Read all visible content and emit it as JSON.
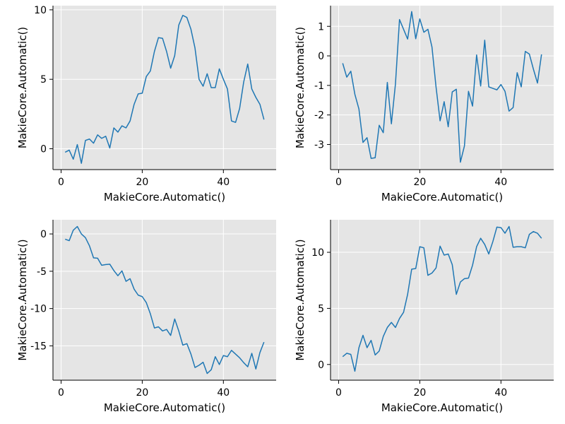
{
  "figure": {
    "background": "#ffffff",
    "panel_color": "#e5e5e5",
    "grid_color": "#ffffff",
    "line_color": "#1f77b4"
  },
  "chart_data": [
    {
      "type": "line",
      "xlabel": "MakieCore.Automatic()",
      "ylabel": "MakieCore.Automatic()",
      "xlim": [
        -2,
        53
      ],
      "ylim": [
        -1.5,
        10.3
      ],
      "xticks": [
        0,
        20,
        40
      ],
      "xtick_labels": [
        "0",
        "20",
        "40"
      ],
      "yticks": [
        0,
        5,
        10
      ],
      "ytick_labels": [
        "0",
        "5",
        "10"
      ],
      "grid": true,
      "x": [
        1,
        2,
        3,
        4,
        5,
        6,
        7,
        8,
        9,
        10,
        11,
        12,
        13,
        14,
        15,
        16,
        17,
        18,
        19,
        20,
        21,
        22,
        23,
        24,
        25,
        26,
        27,
        28,
        29,
        30,
        31,
        32,
        33,
        34,
        35,
        36,
        37,
        38,
        39,
        40,
        41,
        42,
        43,
        44,
        45,
        46,
        47,
        48,
        49,
        50
      ],
      "y": [
        -0.25,
        -0.1,
        -0.75,
        0.3,
        -1.05,
        0.6,
        0.7,
        0.4,
        1.0,
        0.75,
        0.9,
        0.05,
        1.5,
        1.2,
        1.65,
        1.5,
        2.0,
        3.2,
        3.95,
        4.0,
        5.2,
        5.6,
        7.0,
        8.0,
        7.95,
        7.0,
        5.8,
        6.7,
        8.9,
        9.6,
        9.45,
        8.6,
        7.25,
        5.0,
        4.5,
        5.4,
        4.4,
        4.4,
        5.75,
        5.0,
        4.3,
        2.0,
        1.9,
        2.9,
        4.8,
        6.1,
        4.3,
        3.7,
        3.2,
        2.1
      ]
    },
    {
      "type": "line",
      "xlabel": "MakieCore.Automatic()",
      "ylabel": "MakieCore.Automatic()",
      "xlim": [
        -2,
        53
      ],
      "ylim": [
        -3.85,
        1.7
      ],
      "xticks": [
        0,
        20,
        40
      ],
      "xtick_labels": [
        "0",
        "20",
        "40"
      ],
      "yticks": [
        1,
        0,
        -1,
        -2,
        -3
      ],
      "ytick_labels": [
        "1",
        "0",
        "-1",
        "-2",
        "-3"
      ],
      "grid": true,
      "x": [
        1,
        2,
        3,
        4,
        5,
        6,
        7,
        8,
        9,
        10,
        11,
        12,
        13,
        14,
        15,
        16,
        17,
        18,
        19,
        20,
        21,
        22,
        23,
        24,
        25,
        26,
        27,
        28,
        29,
        30,
        31,
        32,
        33,
        34,
        35,
        36,
        37,
        38,
        39,
        40,
        41,
        42,
        43,
        44,
        45,
        46,
        47,
        48,
        49,
        50
      ],
      "y": [
        -0.25,
        -0.72,
        -0.52,
        -1.3,
        -1.8,
        -2.93,
        -2.77,
        -3.47,
        -3.45,
        -2.35,
        -2.6,
        -0.9,
        -2.3,
        -0.95,
        1.23,
        0.9,
        0.57,
        1.5,
        0.58,
        1.25,
        0.8,
        0.9,
        0.3,
        -1.05,
        -2.2,
        -1.55,
        -2.4,
        -1.22,
        -1.13,
        -3.6,
        -3.05,
        -1.2,
        -1.7,
        0.03,
        -1.02,
        0.53,
        -1.05,
        -1.1,
        -1.15,
        -0.97,
        -1.2,
        -1.87,
        -1.75,
        -0.57,
        -1.05,
        0.15,
        0.06,
        -0.45,
        -0.92,
        0.05
      ]
    },
    {
      "type": "line",
      "xlabel": "MakieCore.Automatic()",
      "ylabel": "MakieCore.Automatic()",
      "xlim": [
        -2,
        53
      ],
      "ylim": [
        -19.6,
        1.9
      ],
      "xticks": [
        0,
        20,
        40
      ],
      "xtick_labels": [
        "0",
        "20",
        "40"
      ],
      "yticks": [
        0,
        -5,
        -10,
        -15
      ],
      "ytick_labels": [
        "0",
        "-5",
        "-10",
        "-15"
      ],
      "grid": true,
      "x": [
        1,
        2,
        3,
        4,
        5,
        6,
        7,
        8,
        9,
        10,
        11,
        12,
        13,
        14,
        15,
        16,
        17,
        18,
        19,
        20,
        21,
        22,
        23,
        24,
        25,
        26,
        27,
        28,
        29,
        30,
        31,
        32,
        33,
        34,
        35,
        36,
        37,
        38,
        39,
        40,
        41,
        42,
        43,
        44,
        45,
        46,
        47,
        48,
        49,
        50
      ],
      "y": [
        -0.7,
        -0.9,
        0.5,
        1.0,
        0.0,
        -0.5,
        -1.6,
        -3.2,
        -3.25,
        -4.2,
        -4.1,
        -4.05,
        -4.9,
        -5.6,
        -4.95,
        -6.35,
        -6.0,
        -7.4,
        -8.2,
        -8.4,
        -9.2,
        -10.7,
        -12.6,
        -12.45,
        -13.0,
        -12.8,
        -13.6,
        -11.4,
        -13.0,
        -14.9,
        -14.7,
        -16.1,
        -17.9,
        -17.6,
        -17.2,
        -18.7,
        -18.2,
        -16.45,
        -17.5,
        -16.3,
        -16.45,
        -15.6,
        -16.1,
        -16.6,
        -17.25,
        -17.8,
        -16.0,
        -18.1,
        -15.9,
        -14.5
      ]
    },
    {
      "type": "line",
      "xlabel": "MakieCore.Automatic()",
      "ylabel": "MakieCore.Automatic()",
      "xlim": [
        -2,
        53
      ],
      "ylim": [
        -1.4,
        12.9
      ],
      "xticks": [
        0,
        20,
        40
      ],
      "xtick_labels": [
        "0",
        "20",
        "40"
      ],
      "yticks": [
        0,
        5,
        10
      ],
      "ytick_labels": [
        "0",
        "5",
        "10"
      ],
      "grid": true,
      "x": [
        1,
        2,
        3,
        4,
        5,
        6,
        7,
        8,
        9,
        10,
        11,
        12,
        13,
        14,
        15,
        16,
        17,
        18,
        19,
        20,
        21,
        22,
        23,
        24,
        25,
        26,
        27,
        28,
        29,
        30,
        31,
        32,
        33,
        34,
        35,
        36,
        37,
        38,
        39,
        40,
        41,
        42,
        43,
        44,
        45,
        46,
        47,
        48,
        49,
        50
      ],
      "y": [
        0.7,
        1.0,
        0.9,
        -0.6,
        1.5,
        2.6,
        1.5,
        2.15,
        0.85,
        1.2,
        2.5,
        3.3,
        3.75,
        3.3,
        4.1,
        4.65,
        6.25,
        8.5,
        8.55,
        10.5,
        10.4,
        7.95,
        8.15,
        8.6,
        10.55,
        9.75,
        9.85,
        8.9,
        6.25,
        7.35,
        7.65,
        7.7,
        8.85,
        10.5,
        11.25,
        10.7,
        9.85,
        10.95,
        12.25,
        12.2,
        11.7,
        12.3,
        10.45,
        10.5,
        10.5,
        10.4,
        11.6,
        11.85,
        11.7,
        11.25
      ]
    }
  ]
}
